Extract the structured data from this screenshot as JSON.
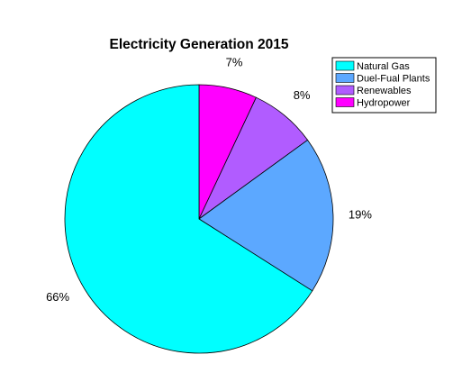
{
  "chart_data": {
    "type": "pie",
    "title": "Electricity Generation 2015",
    "slices": [
      {
        "label": "Natural Gas",
        "value": 66,
        "value_label": "66%",
        "color": "#00FFFF"
      },
      {
        "label": "Duel-Fual Plants",
        "value": 19,
        "value_label": "19%",
        "color": "#5CA8FF"
      },
      {
        "label": "Renewables",
        "value": 8,
        "value_label": "8%",
        "color": "#B15CFF"
      },
      {
        "label": "Hydropower",
        "value": 7,
        "value_label": "7%",
        "color": "#FF00FF"
      }
    ],
    "legend_position": "top-right"
  }
}
